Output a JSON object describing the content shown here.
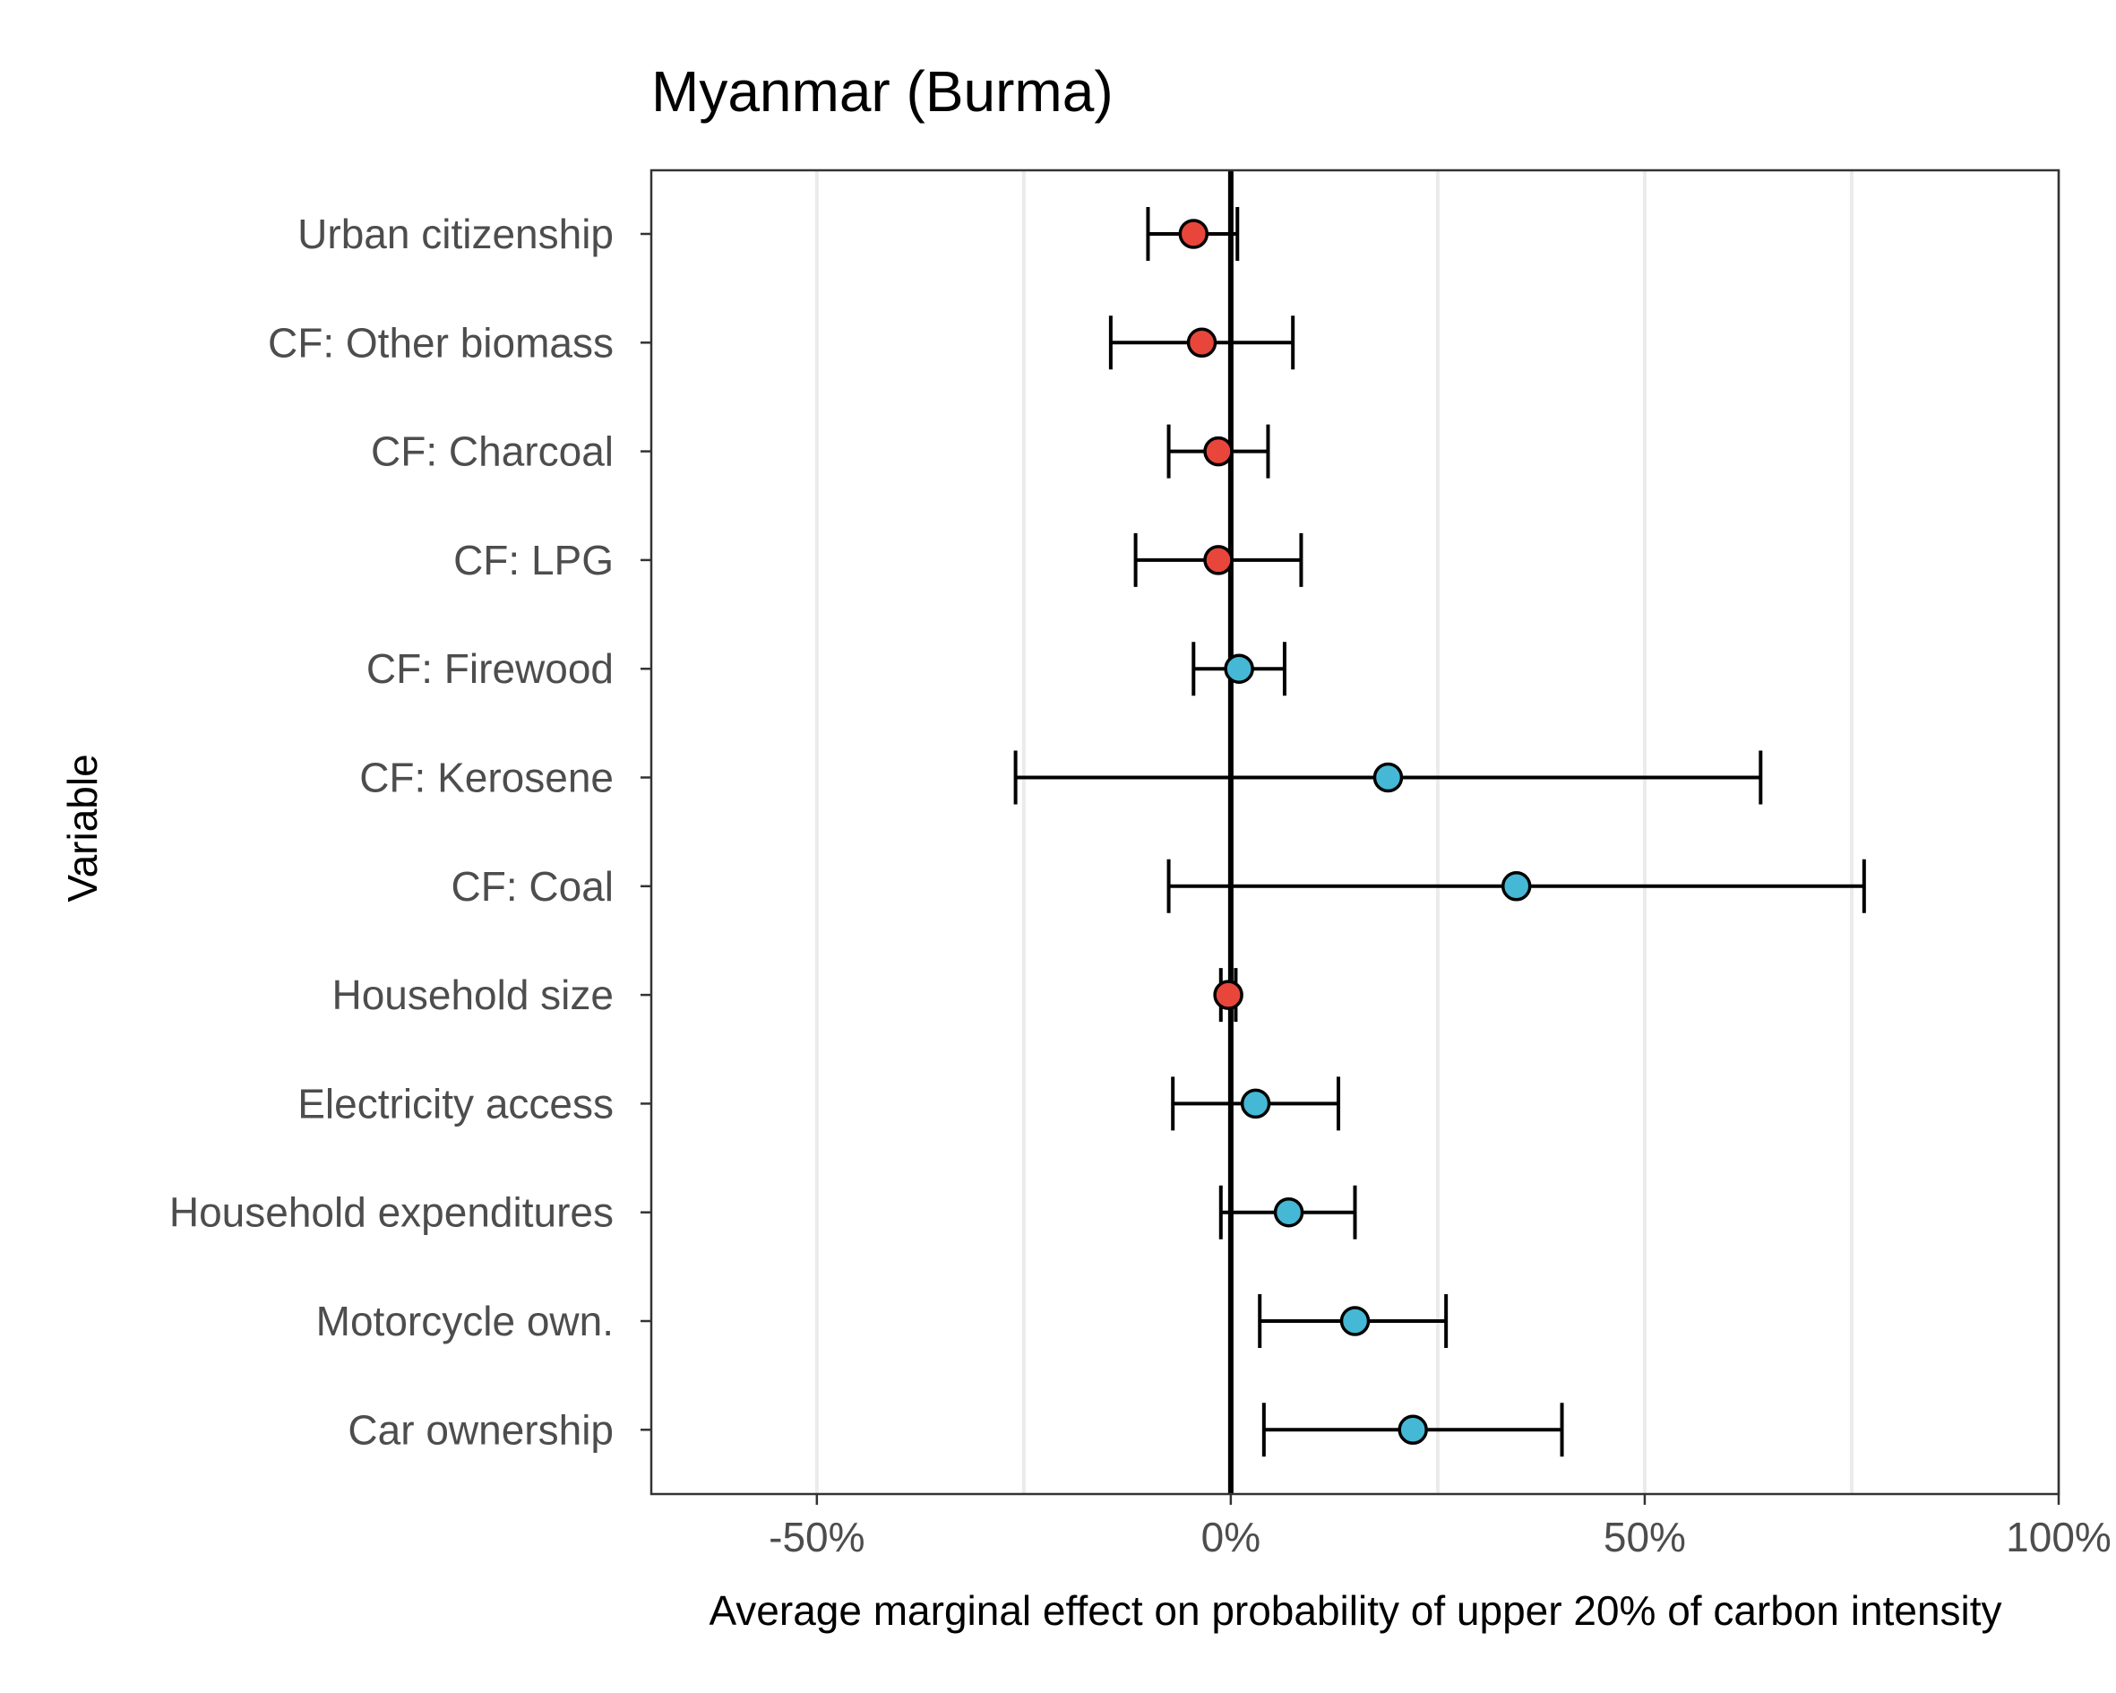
{
  "chart_data": {
    "type": "scatter",
    "subtype": "dot-and-whisker",
    "title": "Myanmar (Burma)",
    "xlabel": "Average marginal effect on probability of upper 20% of carbon intensity",
    "ylabel": "Variable",
    "xlim": [
      -70,
      100
    ],
    "x_ticks": [
      -50,
      0,
      50,
      100
    ],
    "x_tick_labels": [
      "-50%",
      "0%",
      "50%",
      "100%"
    ],
    "x_minor_gridlines": [
      -25,
      25,
      75
    ],
    "reference_line": 0,
    "grid": "vertical",
    "legend": "none",
    "colors": {
      "negative": "#e8463a",
      "positive": "#45b8d5",
      "whisker": "#000000"
    },
    "points": [
      {
        "label": "Urban citizenship",
        "estimate": -4.5,
        "lower": -10,
        "upper": 0.8,
        "sign": "negative"
      },
      {
        "label": "CF: Other biomass",
        "estimate": -3.5,
        "lower": -14.5,
        "upper": 7.5,
        "sign": "negative"
      },
      {
        "label": "CF: Charcoal",
        "estimate": -1.5,
        "lower": -7.5,
        "upper": 4.5,
        "sign": "negative"
      },
      {
        "label": "CF: LPG",
        "estimate": -1.5,
        "lower": -11.5,
        "upper": 8.5,
        "sign": "negative"
      },
      {
        "label": "CF: Firewood",
        "estimate": 1,
        "lower": -4.5,
        "upper": 6.5,
        "sign": "positive"
      },
      {
        "label": "CF: Kerosene",
        "estimate": 19,
        "lower": -26,
        "upper": 64,
        "sign": "positive"
      },
      {
        "label": "CF: Coal",
        "estimate": 34.5,
        "lower": -7.5,
        "upper": 76.5,
        "sign": "positive"
      },
      {
        "label": "Household size",
        "estimate": -0.3,
        "lower": -1.2,
        "upper": 0.6,
        "sign": "negative"
      },
      {
        "label": "Electricity access",
        "estimate": 3,
        "lower": -7,
        "upper": 13,
        "sign": "positive"
      },
      {
        "label": "Household expenditures",
        "estimate": 7,
        "lower": -1.2,
        "upper": 15,
        "sign": "positive"
      },
      {
        "label": "Motorcycle own.",
        "estimate": 15,
        "lower": 3.5,
        "upper": 26,
        "sign": "positive"
      },
      {
        "label": "Car ownership",
        "estimate": 22,
        "lower": 4,
        "upper": 40,
        "sign": "positive"
      }
    ]
  }
}
